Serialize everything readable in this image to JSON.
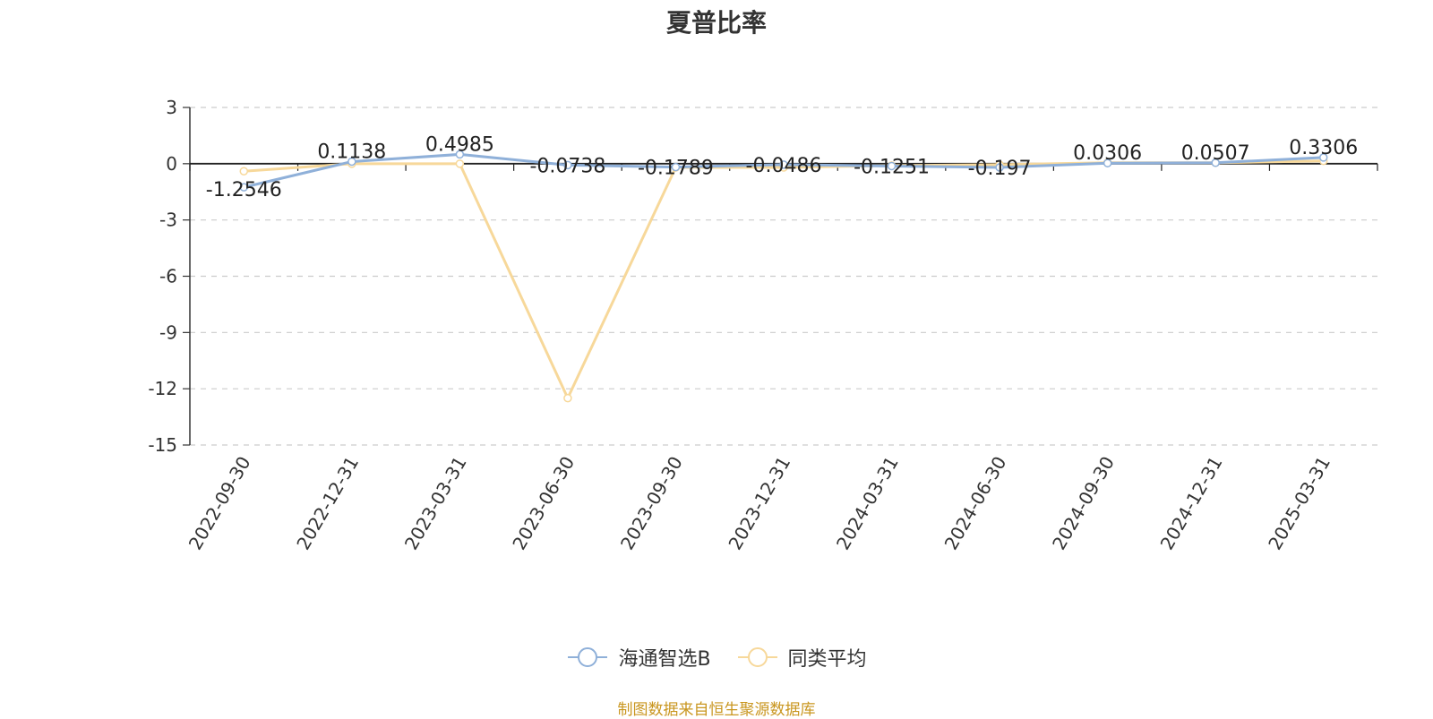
{
  "chart_data": {
    "type": "line",
    "title": "夏普比率",
    "categories": [
      "2022-09-30",
      "2022-12-31",
      "2023-03-31",
      "2023-06-30",
      "2023-09-30",
      "2023-12-31",
      "2024-03-31",
      "2024-06-30",
      "2024-09-30",
      "2024-12-31",
      "2025-03-31"
    ],
    "series": [
      {
        "name": "海通智选B",
        "color": "#8fb0d9",
        "values": [
          -1.2546,
          0.1138,
          0.4985,
          -0.0738,
          -0.1789,
          -0.0486,
          -0.1251,
          -0.197,
          0.0306,
          0.0507,
          0.3306
        ],
        "labels": [
          "-1.2546",
          "0.1138",
          "0.4985",
          "-0.0738",
          "-0.1789",
          "-0.0486",
          "-0.1251",
          "-0.197",
          "0.0306",
          "0.0507",
          "0.3306"
        ]
      },
      {
        "name": "同类平均",
        "color": "#f7d89a",
        "values": [
          -0.4,
          0.0,
          0.0,
          -12.5,
          -0.2,
          -0.2,
          -0.1,
          -0.05,
          0.05,
          0.05,
          0.15
        ]
      }
    ],
    "yticks": [
      "3",
      "0",
      "-3",
      "-6",
      "-9",
      "-12",
      "-15"
    ],
    "ylim": [
      -15,
      3
    ],
    "grid": true,
    "legend_position": "bottom-center",
    "source": "制图数据来自恒生聚源数据库"
  }
}
